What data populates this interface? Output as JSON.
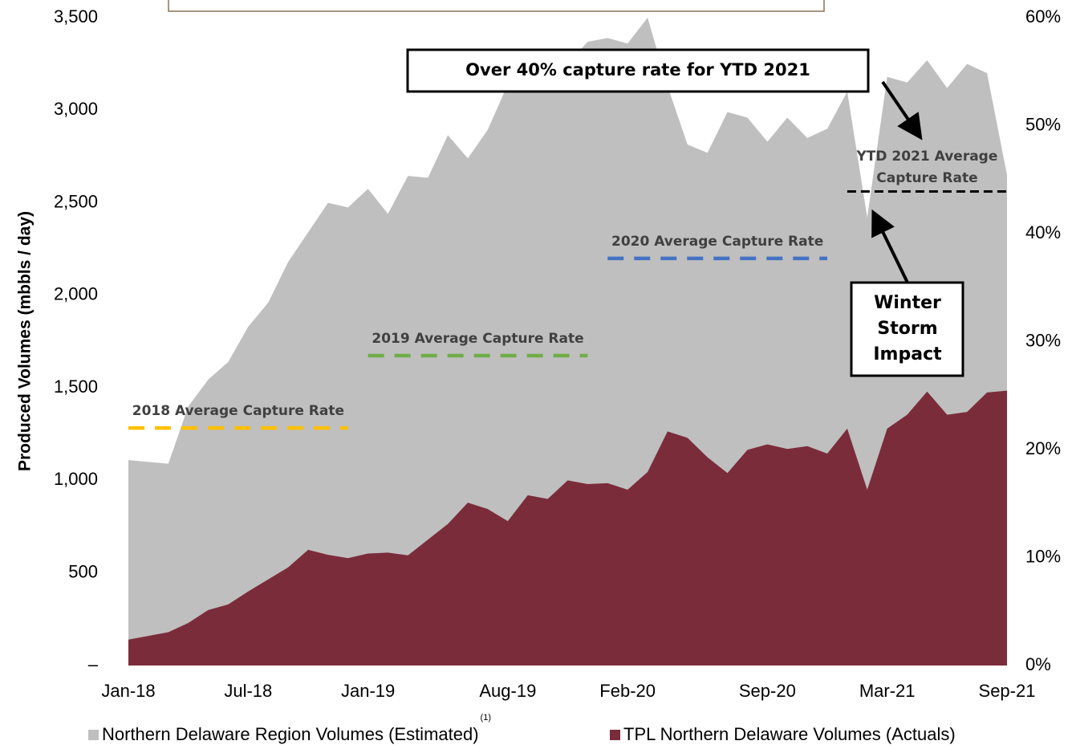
{
  "chart_data": {
    "type": "area",
    "y_label": "Produced Volumes (mbbls / day)",
    "categories": [
      "Jan-18",
      null,
      null,
      null,
      null,
      null,
      "Jul-18",
      null,
      null,
      null,
      null,
      null,
      "Jan-19",
      null,
      null,
      null,
      null,
      null,
      null,
      "Aug-19",
      null,
      null,
      null,
      null,
      null,
      "Feb-20",
      null,
      null,
      null,
      null,
      null,
      null,
      "Sep-20",
      null,
      null,
      null,
      null,
      null,
      "Mar-21",
      null,
      null,
      null,
      null,
      null,
      "Sep-21"
    ],
    "ylim": [
      0,
      3500
    ],
    "yticks": [
      {
        "value": 0,
        "label": "–"
      },
      500,
      {
        "value": 1000,
        "label": "1,000"
      },
      {
        "value": 1500,
        "label": "1,500"
      },
      {
        "value": 2000,
        "label": "2,000"
      },
      {
        "value": 2500,
        "label": "2,500"
      },
      {
        "value": 3000,
        "label": "3,000"
      },
      {
        "value": 3500,
        "label": "3,500"
      }
    ],
    "y2lim": [
      0,
      60
    ],
    "y2ticks": [
      {
        "value": 0,
        "label": "0%"
      },
      {
        "value": 10,
        "label": "10%"
      },
      {
        "value": 20,
        "label": "20%"
      },
      {
        "value": 30,
        "label": "30%"
      },
      {
        "value": 40,
        "label": "40%"
      },
      {
        "value": 50,
        "label": "50%"
      },
      {
        "value": 60,
        "label": "60%"
      }
    ],
    "legend_note": "(1)",
    "series": [
      {
        "name": "Northern Delaware Region Volumes (Estimated)",
        "color": "#bfbfbf",
        "values": [
          1110,
          1100,
          1090,
          1400,
          1545,
          1640,
          1830,
          1960,
          2180,
          2340,
          2500,
          2475,
          2575,
          2440,
          2645,
          2635,
          2865,
          2740,
          2895,
          3140,
          3100,
          3180,
          3250,
          3370,
          3390,
          3360,
          3500,
          3130,
          2815,
          2770,
          2990,
          2960,
          2830,
          2960,
          2850,
          2900,
          3100,
          2420,
          3180,
          3150,
          3270,
          3120,
          3250,
          3200,
          2650
        ]
      },
      {
        "name": "TPL Northern Delaware Volumes (Actuals)",
        "color": "#7b2c3b",
        "values": [
          140,
          160,
          180,
          230,
          300,
          330,
          400,
          465,
          530,
          625,
          598,
          580,
          605,
          610,
          595,
          680,
          765,
          880,
          845,
          780,
          920,
          900,
          1000,
          980,
          985,
          950,
          1045,
          1265,
          1230,
          1125,
          1040,
          1165,
          1195,
          1170,
          1185,
          1145,
          1280,
          950,
          1280,
          1355,
          1480,
          1355,
          1370,
          1475,
          1485
        ]
      },
      {
        "name": "2018 Average Capture Rate",
        "color": "#ffc000",
        "axis": "y2",
        "values": [
          22,
          22,
          22,
          22,
          22,
          22,
          22,
          22,
          22,
          22,
          22,
          22,
          null,
          null,
          null,
          null,
          null,
          null,
          null,
          null,
          null,
          null,
          null,
          null,
          null,
          null,
          null,
          null,
          null,
          null,
          null,
          null,
          null,
          null,
          null,
          null,
          null,
          null,
          null,
          null,
          null,
          null,
          null,
          null,
          null
        ]
      },
      {
        "name": "2019 Average Capture Rate",
        "color": "#70ad47",
        "axis": "y2",
        "values": [
          null,
          null,
          null,
          null,
          null,
          null,
          null,
          null,
          null,
          null,
          null,
          null,
          28.7,
          28.7,
          28.7,
          28.7,
          28.7,
          28.7,
          28.7,
          28.7,
          28.7,
          28.7,
          28.7,
          28.7,
          null,
          null,
          null,
          null,
          null,
          null,
          null,
          null,
          null,
          null,
          null,
          null,
          null,
          null,
          null,
          null,
          null,
          null,
          null,
          null,
          null
        ]
      },
      {
        "name": "2020 Average Capture Rate",
        "color": "#4472c4",
        "axis": "y2",
        "values": [
          null,
          null,
          null,
          null,
          null,
          null,
          null,
          null,
          null,
          null,
          null,
          null,
          null,
          null,
          null,
          null,
          null,
          null,
          null,
          null,
          null,
          null,
          null,
          null,
          37.7,
          37.7,
          37.7,
          37.7,
          37.7,
          37.7,
          37.7,
          37.7,
          37.7,
          37.7,
          37.7,
          37.7,
          null,
          null,
          null,
          null,
          null,
          null,
          null,
          null,
          null
        ]
      },
      {
        "name": "YTD 2021 Average Capture Rate",
        "color": "#000000",
        "axis": "y2",
        "values": [
          null,
          null,
          null,
          null,
          null,
          null,
          null,
          null,
          null,
          null,
          null,
          null,
          null,
          null,
          null,
          null,
          null,
          null,
          null,
          null,
          null,
          null,
          null,
          null,
          null,
          null,
          null,
          null,
          null,
          null,
          null,
          null,
          null,
          null,
          null,
          null,
          43.9,
          43.9,
          43.9,
          43.9,
          43.9,
          43.9,
          43.9,
          43.9,
          43.9
        ]
      }
    ],
    "annotations": [
      {
        "text": "Over 40% capture rate for YTD 2021"
      },
      {
        "text": "Winter Storm Impact"
      }
    ]
  }
}
